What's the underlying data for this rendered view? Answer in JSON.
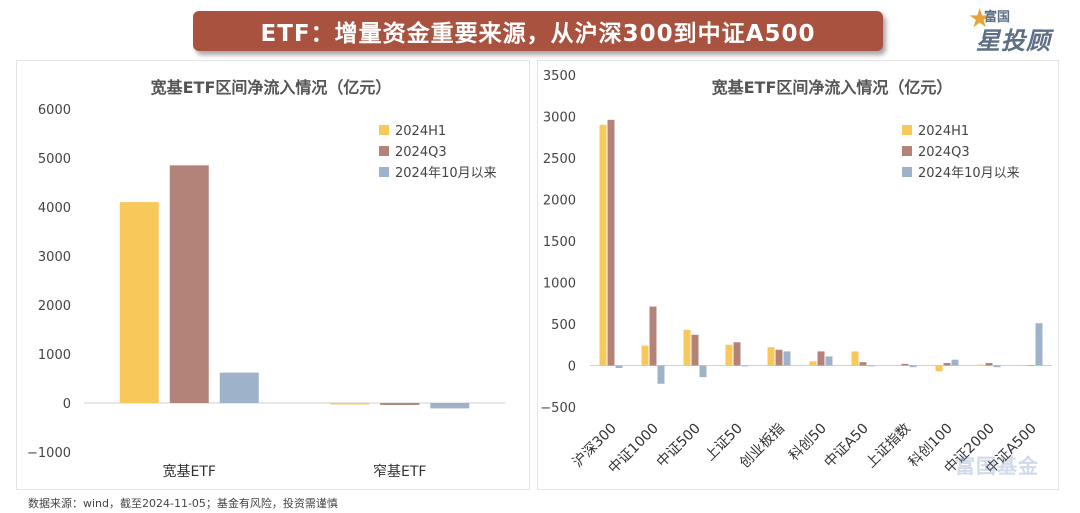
{
  "header": {
    "title": "ETF：增量资金重要来源，从沪深300到中证A500",
    "logo_top": "富国",
    "logo_main": "星投顾"
  },
  "footnote": "数据来源：wind，截至2024-11-05；基金有风险，投资需谨慎",
  "watermark": "富国基金",
  "colors": {
    "h1": "#f9c85a",
    "q3": "#b3837a",
    "oct": "#9eb3c9",
    "banner": "#a9523f"
  },
  "chart_data": [
    {
      "type": "bar",
      "title": "宽基ETF区间净流入情况（亿元）",
      "categories": [
        "宽基ETF",
        "窄基ETF"
      ],
      "series": [
        {
          "name": "2024H1",
          "values": [
            4100,
            -30
          ]
        },
        {
          "name": "2024Q3",
          "values": [
            4850,
            -40
          ]
        },
        {
          "name": "2024年10月以来",
          "values": [
            620,
            -110
          ]
        }
      ],
      "ylim": [
        -1000,
        6000
      ],
      "yticks": [
        "−1000",
        "0",
        "1000",
        "2000",
        "3000",
        "4000",
        "5000",
        "6000"
      ],
      "legend": "top-right"
    },
    {
      "type": "bar",
      "title": "宽基ETF区间净流入情况（亿元）",
      "categories": [
        "沪深300",
        "中证1000",
        "中证500",
        "上证50",
        "创业板指",
        "科创50",
        "中证A50",
        "上证指数",
        "科创100",
        "中证2000",
        "中证A500"
      ],
      "series": [
        {
          "name": "2024H1",
          "values": [
            2900,
            240,
            430,
            250,
            220,
            50,
            170,
            0,
            -70,
            10,
            0
          ]
        },
        {
          "name": "2024Q3",
          "values": [
            2960,
            710,
            370,
            280,
            190,
            170,
            40,
            20,
            30,
            30,
            0
          ]
        },
        {
          "name": "2024年10月以来",
          "values": [
            -30,
            -220,
            -140,
            -10,
            170,
            110,
            -10,
            -20,
            70,
            -20,
            510
          ]
        }
      ],
      "ylim": [
        -500,
        3500
      ],
      "yticks": [
        "−500",
        "0",
        "500",
        "1000",
        "1500",
        "2000",
        "2500",
        "3000",
        "3500"
      ],
      "legend": "top-right"
    }
  ]
}
